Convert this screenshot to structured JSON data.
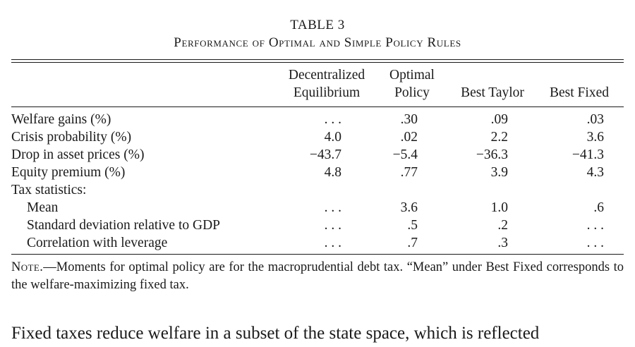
{
  "table": {
    "number": "TABLE 3",
    "title": "Performance of Optimal and Simple Policy Rules",
    "headers": {
      "decentralized_line1": "Decentralized",
      "decentralized_line2": "Equilibrium",
      "optimal_line1": "Optimal",
      "optimal_line2": "Policy",
      "best_taylor": "Best Taylor",
      "best_fixed": "Best Fixed"
    },
    "rows": [
      {
        "label": "Welfare gains (%)",
        "decentralized": ". . .",
        "optimal": ".30",
        "taylor": ".09",
        "fixed": ".03"
      },
      {
        "label": "Crisis probability (%)",
        "decentralized": "4.0",
        "optimal": ".02",
        "taylor": "2.2",
        "fixed": "3.6"
      },
      {
        "label": "Drop in asset prices (%)",
        "decentralized": "−43.7",
        "optimal": "−5.4",
        "taylor": "−36.3",
        "fixed": "−41.3"
      },
      {
        "label": "Equity premium (%)",
        "decentralized": "4.8",
        "optimal": ".77",
        "taylor": "3.9",
        "fixed": "4.3"
      }
    ],
    "tax_section_label": "Tax statistics:",
    "tax_rows": [
      {
        "label": "Mean",
        "decentralized": ". . .",
        "optimal": "3.6",
        "taylor": "1.0",
        "fixed": ".6"
      },
      {
        "label": "Standard deviation relative to GDP",
        "decentralized": ". . .",
        "optimal": ".5",
        "taylor": ".2",
        "fixed": ". . ."
      },
      {
        "label": "Correlation with leverage",
        "decentralized": ". . .",
        "optimal": ".7",
        "taylor": ".3",
        "fixed": ". . ."
      }
    ],
    "note_label": "Note.",
    "note_text": "—Moments for optimal policy are for the macroprudential debt tax. “Mean” under Best Fixed corresponds to the welfare-maximizing fixed tax."
  },
  "body_text": "Fixed taxes reduce welfare in a subset of the state space, which is reflected"
}
